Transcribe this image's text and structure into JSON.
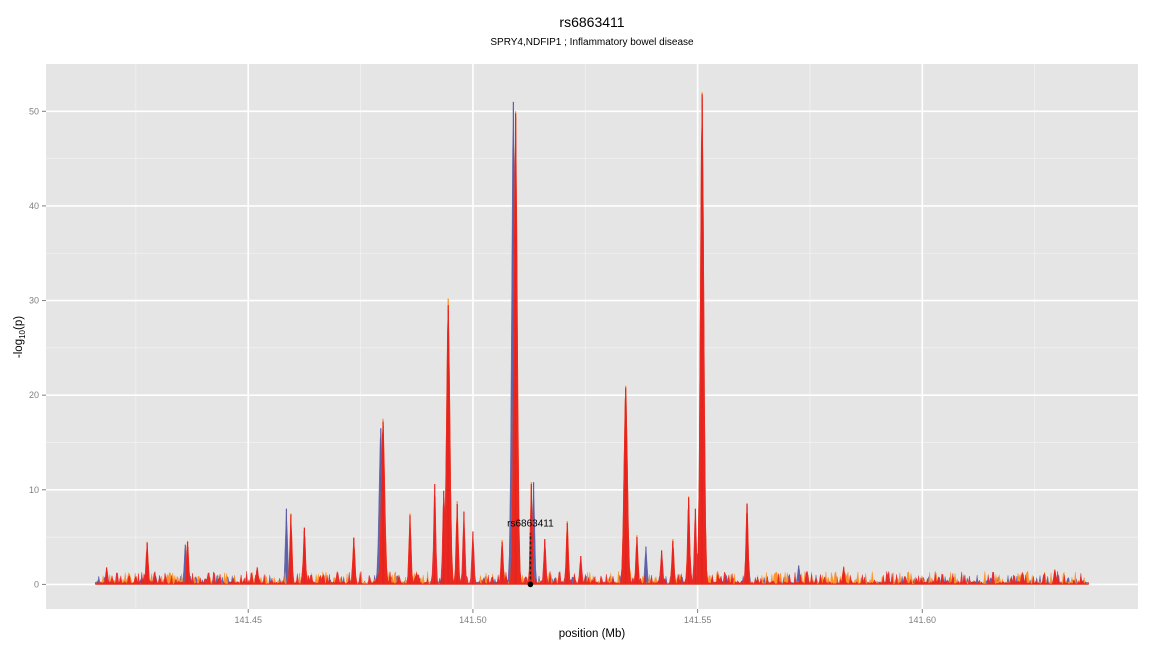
{
  "chart_data": {
    "type": "area",
    "title": "rs6863411",
    "subtitle": "SPRY4,NDFIP1 ; Inflammatory bowel disease",
    "xlabel": "position (Mb)",
    "ylabel_main": "-log",
    "ylabel_sub": "10",
    "ylabel_tail": "(p)",
    "xlim": [
      141.405,
      141.648
    ],
    "ylim": [
      -2.6,
      55
    ],
    "x_ticks": [
      141.45,
      141.5,
      141.55,
      141.6
    ],
    "x_tick_labels": [
      "141.45",
      "141.50",
      "141.55",
      "141.60"
    ],
    "y_ticks": [
      0,
      10,
      20,
      30,
      40,
      50
    ],
    "y_tick_labels": [
      "0",
      "10",
      "20",
      "30",
      "40",
      "50"
    ],
    "grid": true,
    "x_range": [
      141.416,
      141.637
    ],
    "series": [
      {
        "color": "#5b5ea6",
        "peaks": [
          [
            141.4585,
            8.0
          ],
          [
            141.4795,
            16.5
          ],
          [
            141.4945,
            29.0
          ],
          [
            141.509,
            51.0
          ],
          [
            141.5135,
            10.8
          ],
          [
            141.534,
            20.5
          ],
          [
            141.5385,
            4.0
          ],
          [
            141.551,
            51.5
          ],
          [
            141.561,
            8.2
          ],
          [
            141.5725,
            2.0
          ],
          [
            141.436,
            4.2
          ]
        ]
      },
      {
        "color": "#ff8c1a",
        "peaks": [
          [
            141.4275,
            4.5
          ],
          [
            141.4365,
            4.6
          ],
          [
            141.4595,
            7.5
          ],
          [
            141.4625,
            6.0
          ],
          [
            141.4735,
            5.0
          ],
          [
            141.48,
            17.5
          ],
          [
            141.486,
            7.5
          ],
          [
            141.4945,
            30.2
          ],
          [
            141.4965,
            8.8
          ],
          [
            141.5065,
            4.7
          ],
          [
            141.5095,
            50.0
          ],
          [
            141.513,
            10.8
          ],
          [
            141.521,
            6.7
          ],
          [
            141.534,
            21.0
          ],
          [
            141.5365,
            5.2
          ],
          [
            141.5445,
            4.8
          ],
          [
            141.548,
            9.3
          ],
          [
            141.551,
            52.0
          ],
          [
            141.561,
            8.6
          ],
          [
            141.5825,
            1.9
          ],
          [
            141.6295,
            1.6
          ]
        ]
      },
      {
        "color": "#e8201f",
        "peaks": [
          [
            141.4275,
            4.4
          ],
          [
            141.4365,
            4.5
          ],
          [
            141.4595,
            7.4
          ],
          [
            141.4625,
            6.0
          ],
          [
            141.4735,
            4.9
          ],
          [
            141.48,
            17.2
          ],
          [
            141.486,
            7.3
          ],
          [
            141.4915,
            10.6
          ],
          [
            141.4935,
            9.9
          ],
          [
            141.4945,
            29.5
          ],
          [
            141.4965,
            8.5
          ],
          [
            141.498,
            7.7
          ],
          [
            141.5,
            5.6
          ],
          [
            141.5065,
            4.5
          ],
          [
            141.5095,
            49.8
          ],
          [
            141.513,
            10.6
          ],
          [
            141.516,
            4.8
          ],
          [
            141.521,
            6.5
          ],
          [
            141.524,
            3.0
          ],
          [
            141.534,
            20.8
          ],
          [
            141.5365,
            5.0
          ],
          [
            141.542,
            3.6
          ],
          [
            141.5445,
            4.6
          ],
          [
            141.548,
            9.2
          ],
          [
            141.5495,
            8.0
          ],
          [
            141.551,
            51.8
          ],
          [
            141.561,
            8.5
          ],
          [
            141.5825,
            1.8
          ],
          [
            141.6295,
            1.5
          ],
          [
            141.4185,
            1.8
          ],
          [
            141.452,
            1.8
          ]
        ]
      }
    ],
    "annotation": {
      "label": "rs6863411",
      "x": 141.5128,
      "y": 0,
      "line_top": 5.4
    }
  }
}
